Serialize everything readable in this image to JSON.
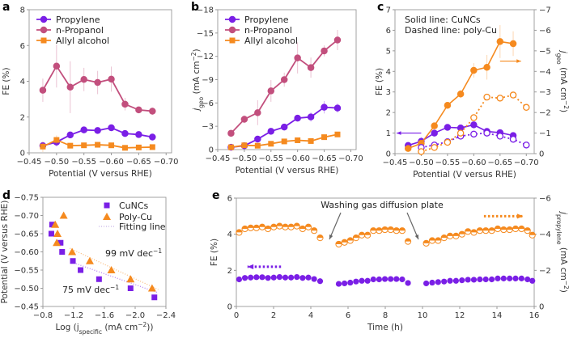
{
  "colors": {
    "propylene": "#7a1fe6",
    "propanol": "#c24f7d",
    "allyl": "#f58a1f",
    "axis": "#999999"
  },
  "chart_data": [
    {
      "panel": "a",
      "type": "line",
      "xlabel": "Potential (V versus RHE)",
      "ylabel": "FE (%)",
      "xlim": [
        -0.45,
        -0.71
      ],
      "ylim": [
        0,
        8
      ],
      "xticks": [
        -0.45,
        -0.5,
        -0.55,
        -0.6,
        -0.65,
        -0.7
      ],
      "xtick_labels": [
        "−0.45",
        "−0.50",
        "−0.55",
        "−0.60",
        "−0.65",
        "−0.70"
      ],
      "yticks": [
        0,
        2,
        4,
        6,
        8
      ],
      "ytick_labels": [
        "0",
        "2",
        "4",
        "6",
        "8"
      ],
      "legend": "top-left",
      "x": [
        -0.475,
        -0.5,
        -0.525,
        -0.55,
        -0.575,
        -0.6,
        -0.625,
        -0.65,
        -0.675
      ],
      "series": [
        {
          "name": "Propylene",
          "color": "propylene",
          "marker": "circle",
          "values": [
            0.4,
            0.6,
            1.0,
            1.28,
            1.25,
            1.4,
            1.08,
            1.02,
            0.88
          ],
          "errors": [
            0.15,
            0.25,
            0.05,
            0.05,
            0.05,
            0.05,
            0.05,
            0.05,
            0.05
          ]
        },
        {
          "name": "n-Propanol",
          "color": "propanol",
          "marker": "circle",
          "values": [
            3.5,
            4.85,
            3.67,
            4.1,
            3.93,
            4.12,
            2.72,
            2.4,
            2.33
          ],
          "errors": [
            0.65,
            1.2,
            1.45,
            0.65,
            0.65,
            0.7,
            0.35,
            0.15,
            0.2
          ]
        },
        {
          "name": "Allyl alcohol",
          "color": "allyl",
          "marker": "square",
          "values": [
            0.35,
            0.72,
            0.4,
            0.42,
            0.45,
            0.42,
            0.28,
            0.3,
            0.32
          ],
          "errors": [
            0.3,
            0.25,
            0.05,
            0.05,
            0.05,
            0.05,
            0.05,
            0.05,
            0.05
          ]
        }
      ]
    },
    {
      "panel": "b",
      "type": "line",
      "xlabel": "Potential (V versus RHE)",
      "ylabel": {
        "main": "j",
        "sub": "geo",
        "rest": " (mA cm",
        "sup": "−2",
        "end": ")"
      },
      "xlim": [
        -0.45,
        -0.71
      ],
      "ylim": [
        0,
        -18
      ],
      "xticks": [
        -0.45,
        -0.5,
        -0.55,
        -0.6,
        -0.65,
        -0.7
      ],
      "xtick_labels": [
        "−0.45",
        "−0.50",
        "−0.55",
        "−0.60",
        "−0.65",
        "−0.70"
      ],
      "yticks": [
        0,
        -3,
        -6,
        -9,
        -12,
        -15,
        -18
      ],
      "ytick_labels": [
        "0",
        "−3",
        "−6",
        "−9",
        "−12",
        "−15",
        "−18"
      ],
      "legend": "top-left",
      "x": [
        -0.475,
        -0.5,
        -0.525,
        -0.55,
        -0.575,
        -0.6,
        -0.625,
        -0.65,
        -0.675
      ],
      "series": [
        {
          "name": "Propylene",
          "color": "propylene",
          "marker": "circle",
          "values": [
            -0.3,
            -0.5,
            -1.35,
            -2.35,
            -2.9,
            -4.05,
            -4.2,
            -5.45,
            -5.35
          ],
          "errors": [
            0.1,
            0.1,
            0.2,
            0.3,
            0.3,
            0.3,
            0.6,
            0.8,
            0.6
          ]
        },
        {
          "name": "n-Propanol",
          "color": "propanol",
          "marker": "circle",
          "values": [
            -2.1,
            -3.9,
            -4.75,
            -7.55,
            -9.0,
            -11.8,
            -10.55,
            -12.7,
            -14.1
          ],
          "errors": [
            0.3,
            0.5,
            1.6,
            1.4,
            0.9,
            2.0,
            1.3,
            0.7,
            1.3
          ]
        },
        {
          "name": "Allyl alcohol",
          "color": "allyl",
          "marker": "square",
          "values": [
            -0.3,
            -0.55,
            -0.5,
            -0.75,
            -1.05,
            -1.2,
            -1.1,
            -1.6,
            -1.95
          ],
          "errors": [
            0.1,
            0.1,
            0.1,
            0.1,
            0.1,
            0.1,
            0.1,
            0.1,
            0.1
          ]
        }
      ]
    },
    {
      "panel": "c",
      "type": "line",
      "xlabel": "Potential (V versus RHE)",
      "ylabel": "FE (%)",
      "y2label": {
        "main": "j",
        "sub": "geo",
        "rest": " (mA cm",
        "sup": "−2",
        "end": ")"
      },
      "xlim": [
        -0.45,
        -0.715
      ],
      "ylim": [
        0,
        7
      ],
      "y2lim": [
        0,
        -7
      ],
      "xticks": [
        -0.45,
        -0.5,
        -0.55,
        -0.6,
        -0.65,
        -0.7
      ],
      "xtick_labels": [
        "−0.45",
        "−0.50",
        "−0.55",
        "−0.60",
        "−0.65",
        "−0.70"
      ],
      "yticks": [
        0,
        1,
        2,
        3,
        4,
        5,
        6,
        7
      ],
      "ytick_labels": [
        "0",
        "1",
        "2",
        "3",
        "4",
        "5",
        "6",
        "7"
      ],
      "y2ticks": [
        0,
        -1,
        -2,
        -3,
        -4,
        -5,
        -6,
        -7
      ],
      "y2tick_labels": [
        "0",
        "−1",
        "−2",
        "−3",
        "−4",
        "−5",
        "−6",
        "−7"
      ],
      "annotations": [
        "Solid line: CuNCs",
        "Dashed line: poly-Cu"
      ],
      "series": [
        {
          "label": "CuNCs FE",
          "axis": "left",
          "color": "propylene",
          "style": "solid",
          "x": [
            -0.475,
            -0.5,
            -0.525,
            -0.55,
            -0.575,
            -0.6,
            -0.625,
            -0.65,
            -0.675
          ],
          "values": [
            0.4,
            0.6,
            1.0,
            1.28,
            1.25,
            1.4,
            1.08,
            1.02,
            0.88
          ],
          "errors": [
            0.1,
            0.2,
            0.05,
            0.05,
            0.05,
            0.05,
            0.05,
            0.05,
            0.05
          ]
        },
        {
          "label": "CuNCs j",
          "axis": "right",
          "color": "allyl",
          "style": "solid",
          "x": [
            -0.475,
            -0.5,
            -0.525,
            -0.55,
            -0.575,
            -0.6,
            -0.625,
            -0.65,
            -0.675
          ],
          "values": [
            -0.25,
            -0.5,
            -1.35,
            -2.35,
            -2.9,
            -4.05,
            -4.2,
            -5.45,
            -5.35
          ],
          "errors": [
            0.1,
            0.1,
            0.1,
            0.1,
            0.2,
            0.35,
            0.6,
            0.8,
            0.6
          ]
        },
        {
          "label": "poly-Cu FE",
          "axis": "left",
          "color": "propylene",
          "style": "dashed",
          "x": [
            -0.5,
            -0.525,
            -0.55,
            -0.575,
            -0.6,
            -0.625,
            -0.65,
            -0.675,
            -0.7
          ],
          "values": [
            0.3,
            0.42,
            0.58,
            0.85,
            0.95,
            1.0,
            0.85,
            0.7,
            0.42
          ],
          "errors": []
        },
        {
          "label": "poly-Cu j",
          "axis": "right",
          "color": "allyl",
          "style": "dashed",
          "x": [
            -0.5,
            -0.525,
            -0.55,
            -0.575,
            -0.6,
            -0.625,
            -0.65,
            -0.675,
            -0.7
          ],
          "values": [
            -0.1,
            -0.3,
            -0.55,
            -1.0,
            -1.75,
            -2.75,
            -2.7,
            -2.85,
            -2.25
          ],
          "errors": []
        }
      ],
      "axis_arrows": [
        {
          "color": "propylene",
          "direction": "left",
          "from_x": -0.5,
          "to_x": -0.453,
          "y": 1.0,
          "axis": "left"
        },
        {
          "color": "allyl",
          "direction": "right",
          "from_x": -0.65,
          "to_x": -0.69,
          "y": -4.5,
          "axis": "right"
        }
      ]
    },
    {
      "panel": "d",
      "type": "scatter",
      "xlabel": {
        "main": "Log (j",
        "sub": "specific",
        "rest": " (mA cm",
        "sup": "−2",
        "end": "))"
      },
      "ylabel": "Potential (V versus RHE)",
      "xlim": [
        -0.8,
        -2.4
      ],
      "ylim": [
        -0.45,
        -0.75
      ],
      "xticks": [
        -0.8,
        -1.2,
        -1.6,
        -2.0,
        -2.4
      ],
      "xtick_labels": [
        "−0.8",
        "−1.2",
        "−1.6",
        "−2.0",
        "−2.4"
      ],
      "yticks": [
        -0.45,
        -0.5,
        -0.55,
        -0.6,
        -0.65,
        -0.7,
        -0.75
      ],
      "ytick_labels": [
        "−0.45",
        "−0.50",
        "−0.55",
        "−0.60",
        "−0.65",
        "−0.70",
        "−0.75"
      ],
      "legend": "top-right",
      "series": [
        {
          "name": "CuNCs",
          "color": "propylene",
          "marker": "square",
          "x": [
            -0.92,
            -0.91,
            -1.03,
            -1.05,
            -1.19,
            -1.29,
            -1.53,
            -1.94,
            -2.25
          ],
          "y": [
            -0.675,
            -0.65,
            -0.625,
            -0.6,
            -0.575,
            -0.55,
            -0.525,
            -0.5,
            -0.475
          ]
        },
        {
          "name": "Poly-Cu",
          "color": "allyl",
          "marker": "triangle",
          "x": [
            -1.07,
            -0.96,
            -0.99,
            -0.98,
            -1.18,
            -1.41,
            -1.69,
            -1.94,
            -2.22
          ],
          "y": [
            -0.7,
            -0.675,
            -0.65,
            -0.625,
            -0.6,
            -0.575,
            -0.55,
            -0.525,
            -0.5
          ]
        }
      ],
      "fit_name": "Fitting line",
      "fits": [
        {
          "color": "propylene",
          "x": [
            -1.2,
            -2.3
          ],
          "y": [
            -0.57,
            -0.4875
          ],
          "label": {
            "text": "75 mV dec",
            "sup": "−1"
          }
        },
        {
          "color": "allyl",
          "x": [
            -1.15,
            -2.3
          ],
          "y": [
            -0.61,
            -0.4965
          ],
          "label": {
            "text": "99 mV dec",
            "sup": "−1"
          }
        }
      ]
    },
    {
      "panel": "e",
      "type": "scatter",
      "xlabel": "Time (h)",
      "ylabel": "FE (%)",
      "y2label": {
        "main": "j",
        "sub": "propylene",
        "rest": " (mA cm",
        "sup": "−2",
        "end": ")"
      },
      "xlim": [
        0,
        16
      ],
      "ylim": [
        0,
        6
      ],
      "y2lim": [
        0,
        -6
      ],
      "xticks": [
        0,
        2,
        4,
        6,
        8,
        10,
        12,
        14,
        16
      ],
      "xtick_labels": [
        "0",
        "2",
        "4",
        "6",
        "8",
        "10",
        "12",
        "14",
        "16"
      ],
      "yticks": [
        0,
        2,
        4,
        6
      ],
      "ytick_labels": [
        "0",
        "2",
        "4",
        "6"
      ],
      "y2ticks": [
        0,
        -2,
        -4,
        -6
      ],
      "y2tick_labels": [
        "0",
        "−2",
        "−4",
        "−6"
      ],
      "annotation": "Washing gas diffusion plate",
      "segments": [
        {
          "t": [
            0.15,
            0.46,
            0.77,
            1.08,
            1.39,
            1.7,
            2.01,
            2.32,
            2.63,
            2.94,
            3.25,
            3.56,
            3.87,
            4.18,
            4.5
          ],
          "fe": [
            1.5,
            1.58,
            1.6,
            1.62,
            1.62,
            1.58,
            1.6,
            1.63,
            1.6,
            1.6,
            1.63,
            1.58,
            1.6,
            1.52,
            1.4
          ],
          "j": [
            -4.1,
            -4.3,
            -4.35,
            -4.35,
            -4.4,
            -4.3,
            -4.4,
            -4.45,
            -4.4,
            -4.4,
            -4.45,
            -4.3,
            -4.4,
            -4.2,
            -3.8
          ]
        },
        {
          "t": [
            5.5,
            5.81,
            6.12,
            6.43,
            6.74,
            7.05,
            7.36,
            7.67,
            7.98,
            8.29,
            8.6,
            8.91,
            9.22
          ],
          "fe": [
            1.25,
            1.28,
            1.32,
            1.38,
            1.42,
            1.42,
            1.5,
            1.5,
            1.52,
            1.52,
            1.52,
            1.5,
            1.3
          ],
          "j": [
            -3.45,
            -3.55,
            -3.65,
            -3.8,
            -3.95,
            -3.95,
            -4.2,
            -4.2,
            -4.25,
            -4.25,
            -4.2,
            -4.2,
            -3.6
          ]
        },
        {
          "t": [
            10.2,
            10.52,
            10.84,
            11.16,
            11.48,
            11.8,
            12.12,
            12.44,
            12.76,
            13.08,
            13.4,
            13.72,
            14.04,
            14.36,
            14.68,
            15.0,
            15.32,
            15.64,
            15.9
          ],
          "fe": [
            1.28,
            1.32,
            1.35,
            1.38,
            1.42,
            1.42,
            1.45,
            1.48,
            1.48,
            1.5,
            1.5,
            1.5,
            1.55,
            1.55,
            1.55,
            1.55,
            1.55,
            1.5,
            1.42
          ],
          "j": [
            -3.5,
            -3.65,
            -3.65,
            -3.8,
            -3.9,
            -3.9,
            -4.0,
            -4.15,
            -4.1,
            -4.2,
            -4.2,
            -4.2,
            -4.3,
            -4.25,
            -4.25,
            -4.3,
            -4.3,
            -4.2,
            -3.95
          ]
        }
      ]
    }
  ]
}
